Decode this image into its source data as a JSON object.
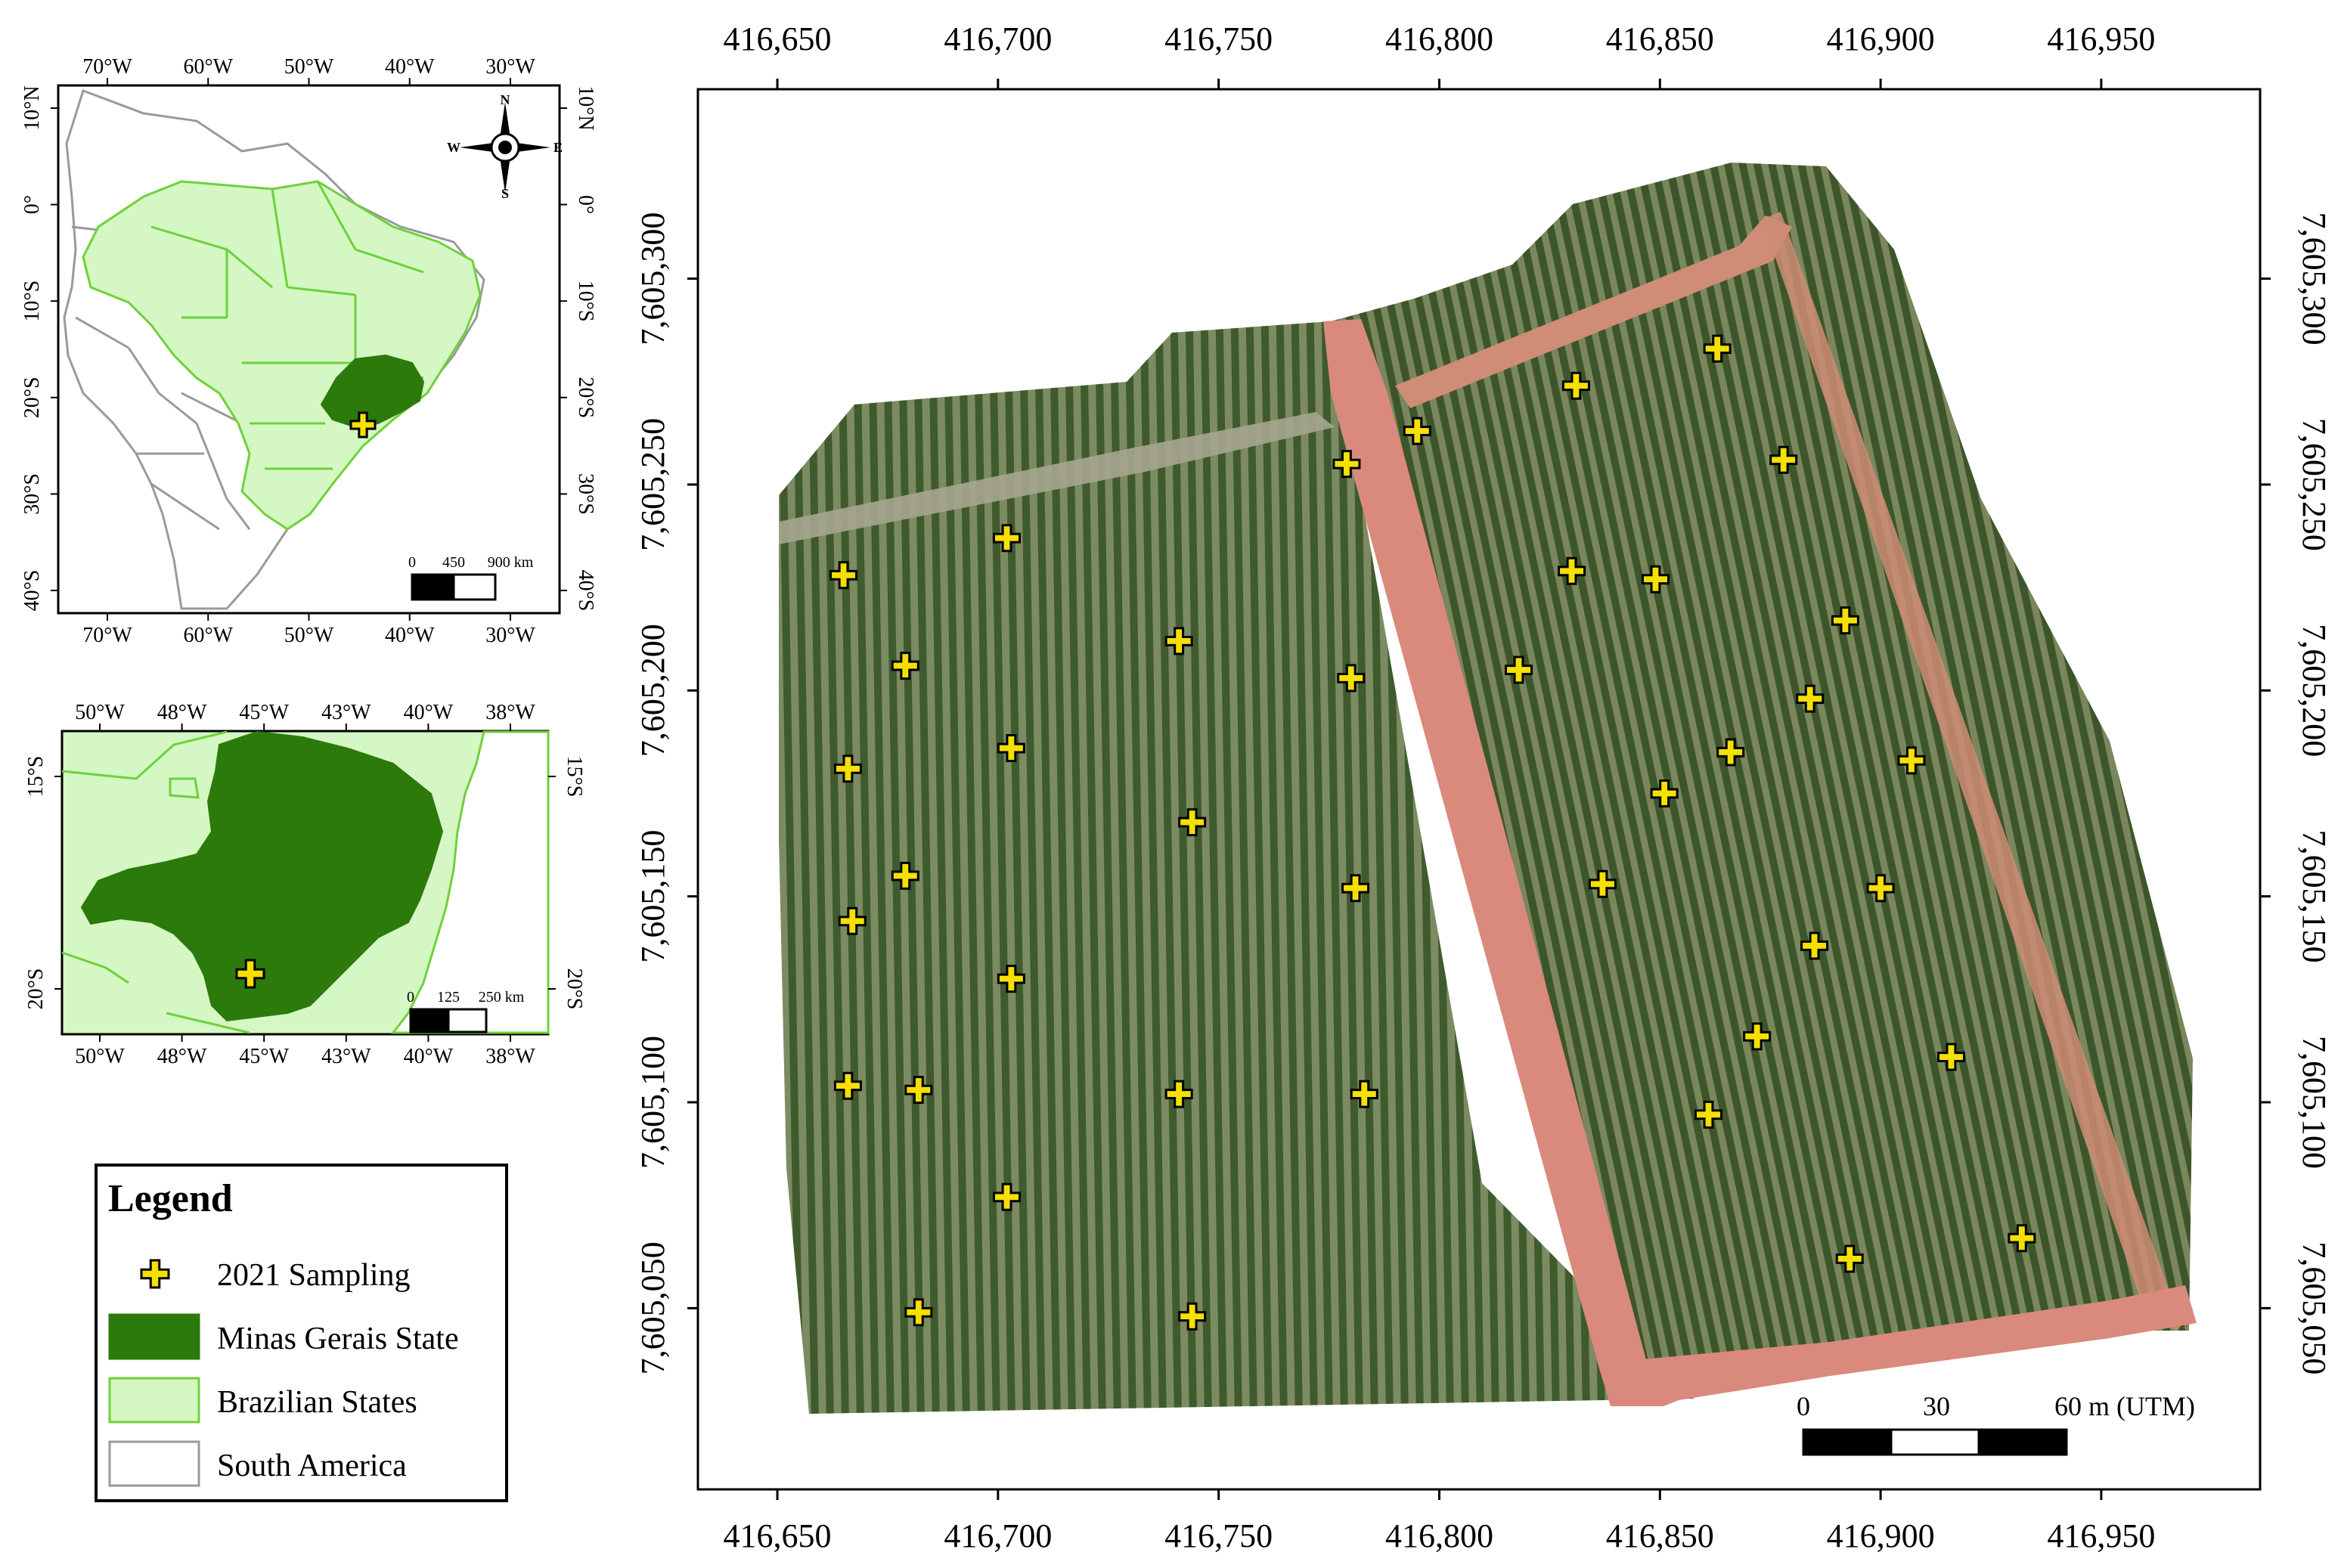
{
  "main_map": {
    "x_ticks": [
      {
        "value": 416650,
        "label": "416,650"
      },
      {
        "value": 416700,
        "label": "416,700"
      },
      {
        "value": 416750,
        "label": "416,750"
      },
      {
        "value": 416800,
        "label": "416,800"
      },
      {
        "value": 416850,
        "label": "416,850"
      },
      {
        "value": 416900,
        "label": "416,900"
      },
      {
        "value": 416950,
        "label": "416,950"
      }
    ],
    "y_ticks": [
      {
        "value": 7605300,
        "label": "7,605,300"
      },
      {
        "value": 7605250,
        "label": "7,605,250"
      },
      {
        "value": 7605200,
        "label": "7,605,200"
      },
      {
        "value": 7605150,
        "label": "7,605,150"
      },
      {
        "value": 7605100,
        "label": "7,605,100"
      },
      {
        "value": 7605050,
        "label": "7,605,050"
      }
    ],
    "x_range": [
      416632,
      416986
    ],
    "y_range": [
      7605006,
      7605346
    ],
    "scalebar": {
      "label_0": "0",
      "label_mid": "30",
      "label_end": "60 m (UTM)"
    },
    "sampling_points": [
      {
        "x": 416665,
        "y": 7605228
      },
      {
        "x": 416679,
        "y": 7605206
      },
      {
        "x": 416666,
        "y": 7605181
      },
      {
        "x": 416679,
        "y": 7605155
      },
      {
        "x": 416667,
        "y": 7605144
      },
      {
        "x": 416666,
        "y": 7605104
      },
      {
        "x": 416682,
        "y": 7605103
      },
      {
        "x": 416682,
        "y": 7605049
      },
      {
        "x": 416702,
        "y": 7605237
      },
      {
        "x": 416703,
        "y": 7605186
      },
      {
        "x": 416703,
        "y": 7605130
      },
      {
        "x": 416702,
        "y": 7605077
      },
      {
        "x": 416741,
        "y": 7605212
      },
      {
        "x": 416744,
        "y": 7605168
      },
      {
        "x": 416741,
        "y": 7605102
      },
      {
        "x": 416744,
        "y": 7605048
      },
      {
        "x": 416779,
        "y": 7605255
      },
      {
        "x": 416780,
        "y": 7605203
      },
      {
        "x": 416781,
        "y": 7605152
      },
      {
        "x": 416783,
        "y": 7605102
      },
      {
        "x": 416795,
        "y": 7605263
      },
      {
        "x": 416818,
        "y": 7605205
      },
      {
        "x": 416831,
        "y": 7605274
      },
      {
        "x": 416830,
        "y": 7605229
      },
      {
        "x": 416837,
        "y": 7605153
      },
      {
        "x": 416849,
        "y": 7605227
      },
      {
        "x": 416851,
        "y": 7605175
      },
      {
        "x": 416861,
        "y": 7605097
      },
      {
        "x": 416863,
        "y": 7605283
      },
      {
        "x": 416866,
        "y": 7605185
      },
      {
        "x": 416872,
        "y": 7605116
      },
      {
        "x": 416878,
        "y": 7605256
      },
      {
        "x": 416884,
        "y": 7605198
      },
      {
        "x": 416885,
        "y": 7605138
      },
      {
        "x": 416892,
        "y": 7605217
      },
      {
        "x": 416893,
        "y": 7605062
      },
      {
        "x": 416900,
        "y": 7605152
      },
      {
        "x": 416907,
        "y": 7605183
      },
      {
        "x": 416916,
        "y": 7605111
      },
      {
        "x": 416932,
        "y": 7605067
      }
    ]
  },
  "inset_south_america": {
    "top_labels": [
      "70°W",
      "60°W",
      "50°W",
      "40°W",
      "30°W"
    ],
    "bottom_labels": [
      "70°W",
      "60°W",
      "50°W",
      "40°W",
      "30°W"
    ],
    "left_labels": [
      "10°N",
      "0°",
      "10°S",
      "20°S",
      "30°S",
      "40°S"
    ],
    "right_labels": [
      "10°N",
      "0°",
      "10°S",
      "20°S",
      "30°S",
      "40°S"
    ],
    "compass": {
      "n": "N",
      "s": "S",
      "w": "W",
      "e": "E"
    },
    "scalebar": {
      "label_0": "0",
      "label_mid": "450",
      "label_end": "900 km"
    }
  },
  "inset_minas": {
    "top_labels": [
      "50°W",
      "48°W",
      "45°W",
      "43°W",
      "40°W",
      "38°W"
    ],
    "bottom_labels": [
      "50°W",
      "48°W",
      "45°W",
      "43°W",
      "40°W",
      "38°W"
    ],
    "left_labels": [
      "15°S",
      "20°S"
    ],
    "right_labels": [
      "15°S",
      "20°S"
    ],
    "scalebar": {
      "label_0": "0",
      "label_mid": "125",
      "label_end": "250 km"
    }
  },
  "legend": {
    "title": "Legend",
    "items": [
      {
        "label": "2021 Sampling",
        "symbol": "cross"
      },
      {
        "label": "Minas Gerais State",
        "symbol": "fill",
        "fill": "#2b7a0b",
        "stroke": "#2b7a0b"
      },
      {
        "label": "Brazilian States",
        "symbol": "fill",
        "fill": "#d4f7c4",
        "stroke": "#6fd13a"
      },
      {
        "label": "South America",
        "symbol": "fill",
        "fill": "#ffffff",
        "stroke": "#9a9a9a"
      }
    ]
  },
  "colors": {
    "minas": "#2b7a0b",
    "brazil_fill": "#d4f7c4",
    "brazil_stroke": "#6fd13a",
    "sa_stroke": "#9a9a9a",
    "marker": "#f5e000",
    "road": "#d98a7c",
    "canopy": "#4f6a3a"
  }
}
